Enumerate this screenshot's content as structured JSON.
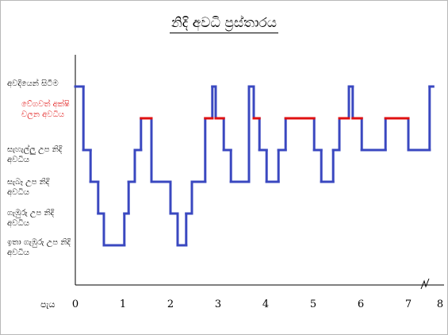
{
  "chart_data": {
    "type": "line",
    "title": "නිදි අවධි ප්‍රස්තාරය",
    "xlabel": "පැය",
    "x_ticks": [
      "0",
      "1",
      "2",
      "3",
      "4",
      "5",
      "6",
      "7",
      "8"
    ],
    "xlim": [
      0,
      8
    ],
    "x_axis_break_between": [
      7,
      8
    ],
    "y_levels": [
      {
        "label": "අවදියෙන් සිටීම",
        "color": "#000000"
      },
      {
        "label": "වේගවත් අක්ෂි චලන අවධිය",
        "color": "#e01010"
      },
      {
        "label": "සැහැල්ලු උප නිදි අවධිය",
        "color": "#000000"
      },
      {
        "label": "සැබෑ උප නිදි අවධිය",
        "color": "#000000"
      },
      {
        "label": "ගැඹුරු උප නිදි අවධිය",
        "color": "#000000"
      },
      {
        "label": "ඉතා ගැඹුරු උප නිදි අවධිය",
        "color": "#000000"
      }
    ],
    "series_color": "#3a48c0",
    "rem_color": "#e01010",
    "steps": [
      {
        "x_start": 0.0,
        "x_end": 0.17,
        "level": 0
      },
      {
        "x_start": 0.17,
        "x_end": 0.32,
        "level": 2
      },
      {
        "x_start": 0.32,
        "x_end": 0.48,
        "level": 3
      },
      {
        "x_start": 0.48,
        "x_end": 0.6,
        "level": 4
      },
      {
        "x_start": 0.6,
        "x_end": 1.03,
        "level": 5
      },
      {
        "x_start": 1.03,
        "x_end": 1.12,
        "level": 4
      },
      {
        "x_start": 1.12,
        "x_end": 1.25,
        "level": 3
      },
      {
        "x_start": 1.25,
        "x_end": 1.38,
        "level": 2
      },
      {
        "x_start": 1.38,
        "x_end": 1.6,
        "level": 1
      },
      {
        "x_start": 1.6,
        "x_end": 2.0,
        "level": 3
      },
      {
        "x_start": 2.0,
        "x_end": 2.15,
        "level": 4
      },
      {
        "x_start": 2.15,
        "x_end": 2.33,
        "level": 5
      },
      {
        "x_start": 2.33,
        "x_end": 2.45,
        "level": 4
      },
      {
        "x_start": 2.45,
        "x_end": 2.73,
        "level": 3
      },
      {
        "x_start": 2.73,
        "x_end": 2.88,
        "level": 1
      },
      {
        "x_start": 2.88,
        "x_end": 2.95,
        "level": 0
      },
      {
        "x_start": 2.95,
        "x_end": 3.12,
        "level": 1
      },
      {
        "x_start": 3.12,
        "x_end": 3.27,
        "level": 2
      },
      {
        "x_start": 3.27,
        "x_end": 3.65,
        "level": 3
      },
      {
        "x_start": 3.65,
        "x_end": 3.75,
        "level": 0
      },
      {
        "x_start": 3.75,
        "x_end": 3.87,
        "level": 1
      },
      {
        "x_start": 3.87,
        "x_end": 4.02,
        "level": 2
      },
      {
        "x_start": 4.02,
        "x_end": 4.27,
        "level": 3
      },
      {
        "x_start": 4.27,
        "x_end": 4.42,
        "level": 2
      },
      {
        "x_start": 4.42,
        "x_end": 5.02,
        "level": 1
      },
      {
        "x_start": 5.02,
        "x_end": 5.17,
        "level": 2
      },
      {
        "x_start": 5.17,
        "x_end": 5.42,
        "level": 3
      },
      {
        "x_start": 5.42,
        "x_end": 5.55,
        "level": 2
      },
      {
        "x_start": 5.55,
        "x_end": 5.75,
        "level": 1
      },
      {
        "x_start": 5.75,
        "x_end": 5.83,
        "level": 0
      },
      {
        "x_start": 5.83,
        "x_end": 6.02,
        "level": 1
      },
      {
        "x_start": 6.02,
        "x_end": 6.52,
        "level": 2
      },
      {
        "x_start": 6.52,
        "x_end": 7.0,
        "level": 1
      },
      {
        "x_start": 7.0,
        "x_end": 7.67,
        "level": 2
      },
      {
        "x_start": 7.67,
        "x_end": 7.78,
        "level": 0
      }
    ]
  }
}
